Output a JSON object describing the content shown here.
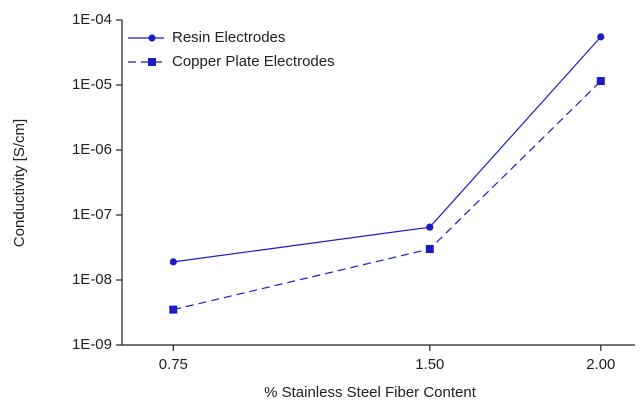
{
  "chart_data": {
    "type": "line",
    "x_label": "% Stainless Steel Fiber Content",
    "y_label": "Conductivity [S/cm]",
    "x": [
      0.75,
      1.5,
      2.0
    ],
    "series": [
      {
        "name": "Resin Electrodes",
        "color": "#1c1cc4",
        "dash": "solid",
        "marker": "circle",
        "values": [
          1.9e-08,
          6.5e-08,
          5.5e-05
        ]
      },
      {
        "name": "Copper Plate Electrodes",
        "color": "#1c1cc4",
        "dash": "dashed",
        "marker": "square",
        "values": [
          3.5e-09,
          3e-08,
          1.15e-05
        ]
      }
    ],
    "xlim": [
      0.6,
      2.1
    ],
    "xticks": [
      0.75,
      {
        "value": 1.5,
        "label": "1.50"
      },
      {
        "value": 2.0,
        "label": "2.00"
      }
    ],
    "ylim": [
      1e-09,
      0.0001
    ],
    "yticks": [
      {
        "value": 1e-09,
        "label": "1E-09"
      },
      {
        "value": 1e-08,
        "label": "1E-08"
      },
      {
        "value": 1e-07,
        "label": "1E-07"
      },
      {
        "value": 1e-06,
        "label": "1E-06"
      },
      {
        "value": 1e-05,
        "label": "1E-05"
      },
      {
        "value": 0.0001,
        "label": "1E-04"
      }
    ],
    "log_y": true,
    "grid": false,
    "legend": "upper-left"
  }
}
